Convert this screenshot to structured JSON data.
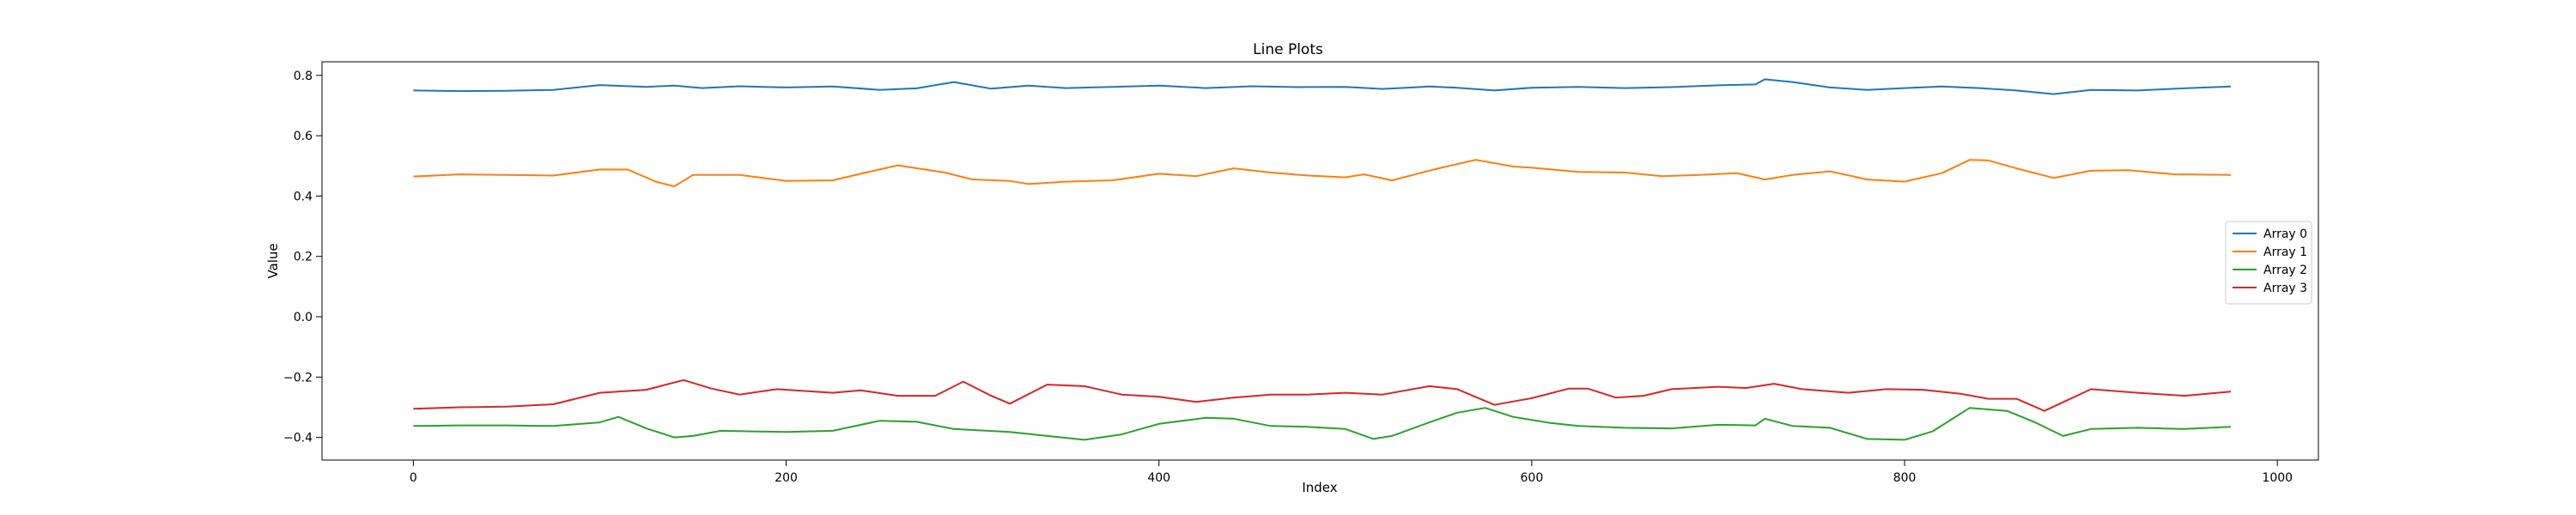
{
  "chart_data": {
    "type": "line",
    "title": "Line Plots",
    "xlabel": "Index",
    "ylabel": "Value",
    "xlim": [
      -49,
      1022
    ],
    "ylim": [
      -0.475,
      0.845
    ],
    "xticks": [
      0,
      200,
      400,
      600,
      800,
      1000
    ],
    "xtick_labels": [
      "0",
      "200",
      "400",
      "600",
      "800",
      "1000"
    ],
    "yticks": [
      -0.4,
      -0.2,
      0.0,
      0.2,
      0.4,
      0.6,
      0.8
    ],
    "ytick_labels": [
      "−0.4",
      "−0.2",
      "0.0",
      "0.2",
      "0.4",
      "0.6",
      "0.8"
    ],
    "legend_position": "center-right",
    "grid": false,
    "series": [
      {
        "name": "Array 0",
        "color": "#1f77b4",
        "points": [
          [
            0,
            0.75
          ],
          [
            25,
            0.748
          ],
          [
            50,
            0.749
          ],
          [
            75,
            0.752
          ],
          [
            100,
            0.768
          ],
          [
            125,
            0.762
          ],
          [
            140,
            0.766
          ],
          [
            155,
            0.758
          ],
          [
            175,
            0.764
          ],
          [
            200,
            0.76
          ],
          [
            225,
            0.763
          ],
          [
            250,
            0.752
          ],
          [
            270,
            0.757
          ],
          [
            290,
            0.778
          ],
          [
            310,
            0.756
          ],
          [
            330,
            0.766
          ],
          [
            350,
            0.758
          ],
          [
            375,
            0.762
          ],
          [
            400,
            0.766
          ],
          [
            425,
            0.758
          ],
          [
            450,
            0.764
          ],
          [
            475,
            0.761
          ],
          [
            500,
            0.762
          ],
          [
            520,
            0.755
          ],
          [
            545,
            0.763
          ],
          [
            560,
            0.759
          ],
          [
            580,
            0.75
          ],
          [
            600,
            0.759
          ],
          [
            625,
            0.762
          ],
          [
            650,
            0.758
          ],
          [
            675,
            0.761
          ],
          [
            700,
            0.767
          ],
          [
            720,
            0.77
          ],
          [
            725,
            0.787
          ],
          [
            740,
            0.778
          ],
          [
            760,
            0.76
          ],
          [
            780,
            0.752
          ],
          [
            800,
            0.758
          ],
          [
            820,
            0.763
          ],
          [
            840,
            0.758
          ],
          [
            860,
            0.75
          ],
          [
            880,
            0.738
          ],
          [
            900,
            0.752
          ],
          [
            925,
            0.75
          ],
          [
            950,
            0.757
          ],
          [
            975,
            0.763
          ]
        ]
      },
      {
        "name": "Array 1",
        "color": "#ff7f0e",
        "points": [
          [
            0,
            0.465
          ],
          [
            25,
            0.472
          ],
          [
            50,
            0.47
          ],
          [
            75,
            0.468
          ],
          [
            100,
            0.488
          ],
          [
            115,
            0.488
          ],
          [
            130,
            0.448
          ],
          [
            140,
            0.432
          ],
          [
            150,
            0.47
          ],
          [
            175,
            0.47
          ],
          [
            200,
            0.45
          ],
          [
            225,
            0.452
          ],
          [
            240,
            0.474
          ],
          [
            260,
            0.502
          ],
          [
            285,
            0.478
          ],
          [
            300,
            0.455
          ],
          [
            320,
            0.45
          ],
          [
            330,
            0.44
          ],
          [
            350,
            0.448
          ],
          [
            375,
            0.452
          ],
          [
            400,
            0.474
          ],
          [
            420,
            0.466
          ],
          [
            440,
            0.492
          ],
          [
            460,
            0.478
          ],
          [
            480,
            0.468
          ],
          [
            500,
            0.462
          ],
          [
            510,
            0.472
          ],
          [
            525,
            0.452
          ],
          [
            550,
            0.492
          ],
          [
            570,
            0.52
          ],
          [
            590,
            0.498
          ],
          [
            600,
            0.494
          ],
          [
            625,
            0.48
          ],
          [
            650,
            0.478
          ],
          [
            670,
            0.466
          ],
          [
            690,
            0.47
          ],
          [
            710,
            0.476
          ],
          [
            725,
            0.455
          ],
          [
            740,
            0.47
          ],
          [
            760,
            0.482
          ],
          [
            780,
            0.455
          ],
          [
            800,
            0.448
          ],
          [
            820,
            0.476
          ],
          [
            835,
            0.52
          ],
          [
            845,
            0.518
          ],
          [
            860,
            0.492
          ],
          [
            880,
            0.46
          ],
          [
            900,
            0.484
          ],
          [
            920,
            0.486
          ],
          [
            945,
            0.472
          ],
          [
            975,
            0.47
          ]
        ]
      },
      {
        "name": "Array 2",
        "color": "#2ca02c",
        "points": [
          [
            0,
            -0.362
          ],
          [
            25,
            -0.36
          ],
          [
            50,
            -0.36
          ],
          [
            75,
            -0.362
          ],
          [
            100,
            -0.35
          ],
          [
            110,
            -0.332
          ],
          [
            125,
            -0.37
          ],
          [
            140,
            -0.4
          ],
          [
            150,
            -0.395
          ],
          [
            165,
            -0.378
          ],
          [
            200,
            -0.382
          ],
          [
            225,
            -0.378
          ],
          [
            250,
            -0.345
          ],
          [
            270,
            -0.348
          ],
          [
            290,
            -0.372
          ],
          [
            320,
            -0.382
          ],
          [
            340,
            -0.395
          ],
          [
            360,
            -0.408
          ],
          [
            380,
            -0.39
          ],
          [
            400,
            -0.355
          ],
          [
            425,
            -0.335
          ],
          [
            440,
            -0.338
          ],
          [
            460,
            -0.362
          ],
          [
            480,
            -0.365
          ],
          [
            500,
            -0.372
          ],
          [
            515,
            -0.405
          ],
          [
            525,
            -0.395
          ],
          [
            545,
            -0.35
          ],
          [
            560,
            -0.318
          ],
          [
            575,
            -0.302
          ],
          [
            590,
            -0.332
          ],
          [
            610,
            -0.352
          ],
          [
            625,
            -0.362
          ],
          [
            650,
            -0.368
          ],
          [
            675,
            -0.37
          ],
          [
            700,
            -0.358
          ],
          [
            720,
            -0.36
          ],
          [
            725,
            -0.338
          ],
          [
            740,
            -0.362
          ],
          [
            760,
            -0.368
          ],
          [
            780,
            -0.405
          ],
          [
            800,
            -0.408
          ],
          [
            815,
            -0.38
          ],
          [
            835,
            -0.302
          ],
          [
            855,
            -0.312
          ],
          [
            870,
            -0.35
          ],
          [
            885,
            -0.395
          ],
          [
            900,
            -0.372
          ],
          [
            925,
            -0.368
          ],
          [
            950,
            -0.372
          ],
          [
            975,
            -0.365
          ]
        ]
      },
      {
        "name": "Array 3",
        "color": "#d62728",
        "points": [
          [
            0,
            -0.305
          ],
          [
            25,
            -0.3
          ],
          [
            50,
            -0.298
          ],
          [
            75,
            -0.29
          ],
          [
            100,
            -0.252
          ],
          [
            125,
            -0.242
          ],
          [
            145,
            -0.21
          ],
          [
            160,
            -0.238
          ],
          [
            175,
            -0.258
          ],
          [
            195,
            -0.24
          ],
          [
            225,
            -0.252
          ],
          [
            240,
            -0.244
          ],
          [
            260,
            -0.262
          ],
          [
            280,
            -0.262
          ],
          [
            295,
            -0.215
          ],
          [
            310,
            -0.262
          ],
          [
            320,
            -0.288
          ],
          [
            340,
            -0.225
          ],
          [
            360,
            -0.23
          ],
          [
            380,
            -0.258
          ],
          [
            400,
            -0.265
          ],
          [
            420,
            -0.282
          ],
          [
            440,
            -0.268
          ],
          [
            460,
            -0.258
          ],
          [
            480,
            -0.258
          ],
          [
            500,
            -0.252
          ],
          [
            520,
            -0.258
          ],
          [
            545,
            -0.23
          ],
          [
            560,
            -0.24
          ],
          [
            580,
            -0.292
          ],
          [
            600,
            -0.27
          ],
          [
            620,
            -0.238
          ],
          [
            630,
            -0.238
          ],
          [
            645,
            -0.268
          ],
          [
            660,
            -0.262
          ],
          [
            675,
            -0.24
          ],
          [
            700,
            -0.232
          ],
          [
            715,
            -0.236
          ],
          [
            730,
            -0.222
          ],
          [
            745,
            -0.24
          ],
          [
            770,
            -0.252
          ],
          [
            790,
            -0.24
          ],
          [
            810,
            -0.242
          ],
          [
            830,
            -0.255
          ],
          [
            845,
            -0.272
          ],
          [
            860,
            -0.272
          ],
          [
            875,
            -0.312
          ],
          [
            900,
            -0.24
          ],
          [
            925,
            -0.252
          ],
          [
            950,
            -0.262
          ],
          [
            975,
            -0.248
          ]
        ]
      }
    ]
  }
}
